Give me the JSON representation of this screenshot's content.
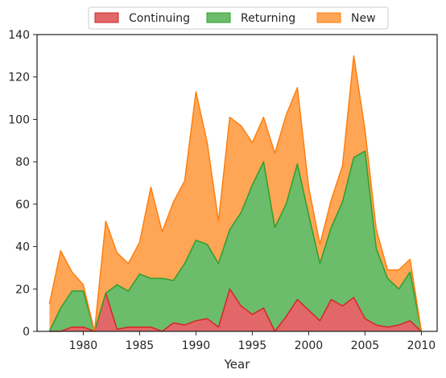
{
  "chart_data": {
    "type": "area",
    "stacked": true,
    "title": "",
    "xlabel": "Year",
    "ylabel": "",
    "xlim": [
      1975.9,
      2011.4
    ],
    "ylim": [
      0,
      140
    ],
    "xticks": [
      1980,
      1985,
      1990,
      1995,
      2000,
      2005,
      2010
    ],
    "yticks": [
      0,
      20,
      40,
      60,
      80,
      100,
      120,
      140
    ],
    "grid": false,
    "legend_position": "top-center",
    "x": [
      1977,
      1978,
      1979,
      1980,
      1981,
      1982,
      1983,
      1984,
      1985,
      1986,
      1987,
      1988,
      1989,
      1990,
      1991,
      1992,
      1993,
      1994,
      1995,
      1996,
      1997,
      1998,
      1999,
      2000,
      2001,
      2002,
      2003,
      2004,
      2005,
      2006,
      2007,
      2008,
      2009,
      2010
    ],
    "series": [
      {
        "name": "Continuing",
        "color": "#d62728",
        "values": [
          0,
          0,
          2,
          2,
          0,
          18,
          1,
          2,
          2,
          2,
          0,
          4,
          3,
          5,
          6,
          2,
          20,
          12,
          8,
          11,
          0,
          7,
          15,
          10,
          5,
          15,
          12,
          16,
          6,
          3,
          2,
          3,
          5,
          0
        ]
      },
      {
        "name": "Returning",
        "color": "#2ca02c",
        "values": [
          0,
          11,
          17,
          17,
          0,
          0,
          21,
          17,
          25,
          23,
          25,
          20,
          29,
          38,
          35,
          30,
          28,
          44,
          61,
          69,
          49,
          53,
          64,
          45,
          27,
          34,
          49,
          66,
          79,
          36,
          23,
          17,
          23,
          0
        ]
      },
      {
        "name": "New",
        "color": "#ff7f0e",
        "values": [
          13,
          27,
          9,
          3,
          0,
          34,
          15,
          13,
          15,
          43,
          22,
          37,
          39,
          70,
          48,
          20,
          53,
          41,
          20,
          21,
          35,
          42,
          36,
          13,
          9,
          13,
          17,
          48,
          10,
          9,
          4,
          9,
          6,
          0
        ]
      }
    ]
  }
}
